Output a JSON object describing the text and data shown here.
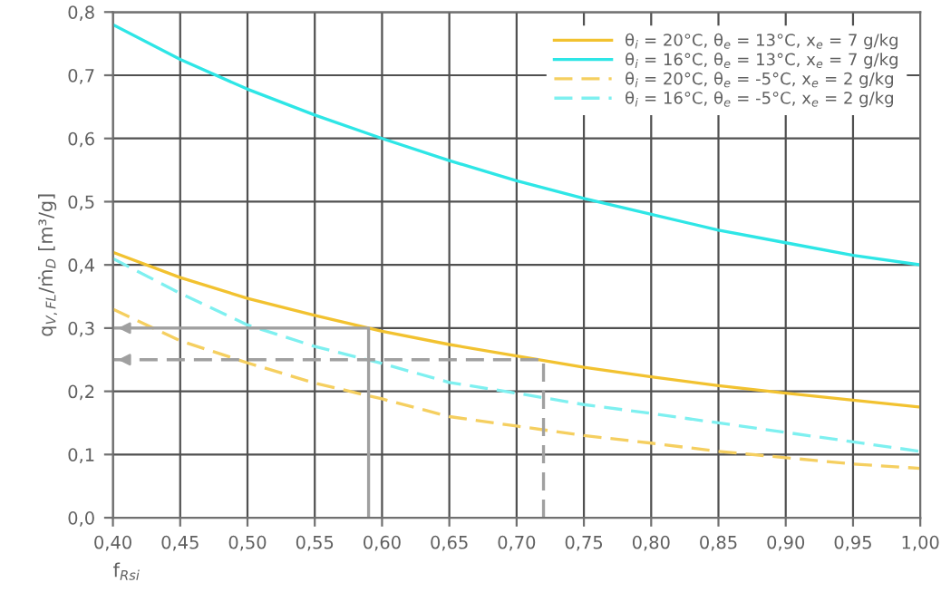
{
  "chart_data": {
    "type": "line",
    "xlabel": "f$_{Rsi}$",
    "ylabel": "q$_{V,FL}$/ṁ$_{D}$ [m³/g]",
    "x": [
      0.4,
      0.45,
      0.5,
      0.55,
      0.6,
      0.65,
      0.7,
      0.75,
      0.8,
      0.85,
      0.9,
      0.95,
      1.0
    ],
    "series": [
      {
        "name": "θ$_{i}$ = 20°C, θ$_{e}$ = 13°C, x$_{e}$ = 7 g/kg",
        "color": "#f2c230",
        "line_style": "solid",
        "values": [
          0.42,
          0.38,
          0.347,
          0.32,
          0.295,
          0.274,
          0.256,
          0.238,
          0.223,
          0.209,
          0.197,
          0.186,
          0.175
        ]
      },
      {
        "name": "θ$_{i}$ = 16°C, θ$_{e}$ = 13°C, x$_{e}$ = 7 g/kg",
        "color": "#2ee6e6",
        "line_style": "solid",
        "values": [
          0.78,
          0.725,
          0.678,
          0.637,
          0.6,
          0.565,
          0.533,
          0.505,
          0.48,
          0.455,
          0.435,
          0.415,
          0.4
        ]
      },
      {
        "name": "θ$_{i}$ = 20°C, θ$_{e}$ = -5°C, x$_{e}$ = 2 g/kg",
        "color": "#f5cf60",
        "line_style": "dashed",
        "values": [
          0.33,
          0.28,
          0.245,
          0.213,
          0.188,
          0.16,
          0.145,
          0.13,
          0.118,
          0.105,
          0.095,
          0.085,
          0.078
        ]
      },
      {
        "name": "θ$_{i}$ = 16°C, θ$_{e}$ = -5°C, x$_{e}$ = 2 g/kg",
        "color": "#7ef0f0",
        "line_style": "dashed",
        "values": [
          0.41,
          0.355,
          0.305,
          0.271,
          0.244,
          0.214,
          0.197,
          0.179,
          0.165,
          0.15,
          0.135,
          0.12,
          0.105
        ]
      },
      {
        "color": "#a0a0a0",
        "line_style": "solid",
        "x": [
          0.59,
          0.59,
          0.4
        ],
        "values": [
          0.0,
          0.3,
          0.3
        ]
      },
      {
        "color": "#a0a0a0",
        "line_style": "dashed",
        "x": [
          0.72,
          0.72,
          0.4
        ],
        "values": [
          0.0,
          0.25,
          0.25
        ]
      }
    ],
    "xlim": [
      0.4,
      1.0
    ],
    "ylim": [
      0.0,
      0.8
    ],
    "xticks": [
      {
        "value": 0.4,
        "label": "0,40"
      },
      {
        "value": 0.45,
        "label": "0,45"
      },
      {
        "value": 0.5,
        "label": "0,50"
      },
      {
        "value": 0.55,
        "label": "0,55"
      },
      {
        "value": 0.6,
        "label": "0,60"
      },
      {
        "value": 0.65,
        "label": "0,65"
      },
      {
        "value": 0.7,
        "label": "0,70"
      },
      {
        "value": 0.75,
        "label": "0,75"
      },
      {
        "value": 0.8,
        "label": "0,80"
      },
      {
        "value": 0.85,
        "label": "0,85"
      },
      {
        "value": 0.9,
        "label": "0,90"
      },
      {
        "value": 0.95,
        "label": "0,95"
      },
      {
        "value": 1.0,
        "label": "1,00"
      }
    ],
    "yticks": [
      {
        "value": 0.0,
        "label": "0,0"
      },
      {
        "value": 0.1,
        "label": "0,1"
      },
      {
        "value": 0.2,
        "label": "0,2"
      },
      {
        "value": 0.3,
        "label": "0,3"
      },
      {
        "value": 0.4,
        "label": "0,4"
      },
      {
        "value": 0.5,
        "label": "0,5"
      },
      {
        "value": 0.6,
        "label": "0,6"
      },
      {
        "value": 0.7,
        "label": "0,7"
      },
      {
        "value": 0.8,
        "label": "0,8"
      }
    ],
    "grid": true,
    "legend": "top right",
    "marker": "none"
  }
}
